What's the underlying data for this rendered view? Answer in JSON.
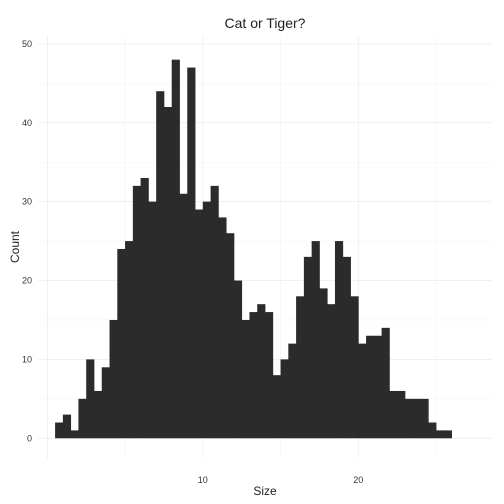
{
  "chart_data": {
    "type": "bar",
    "subtype": "histogram",
    "title": "Cat or Tiger?",
    "xlabel": "Size",
    "ylabel": "Count",
    "bin_width": 0.5,
    "x_start": 0.5,
    "xlim": [
      -0.6,
      28.6
    ],
    "ylim": [
      -2.5,
      51
    ],
    "x_ticks": [
      10,
      20
    ],
    "x_tick_labels": [
      "10",
      "20"
    ],
    "y_ticks": [
      0,
      10,
      20,
      30,
      40,
      50
    ],
    "y_tick_labels": [
      "0",
      "10",
      "20",
      "30",
      "40",
      "50"
    ],
    "grid": true,
    "bar_color": "#2b2b2b",
    "values": [
      2,
      3,
      1,
      5,
      10,
      6,
      9,
      15,
      24,
      25,
      32,
      33,
      30,
      44,
      42,
      48,
      31,
      47,
      29,
      30,
      32,
      28,
      26,
      20,
      15,
      16,
      17,
      16,
      8,
      10,
      12,
      18,
      23,
      25,
      19,
      17,
      25,
      23,
      18,
      12,
      13,
      13,
      14,
      6,
      6,
      5,
      5,
      5,
      2,
      1,
      1
    ]
  }
}
